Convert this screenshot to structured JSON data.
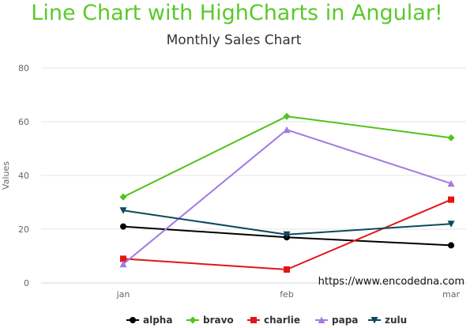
{
  "page": {
    "banner": "Line Chart with HighCharts in Angular!",
    "watermark_url": "https://www.encodedna.com"
  },
  "chart_data": {
    "type": "line",
    "title": "Monthly Sales Chart",
    "xlabel": "",
    "ylabel": "Values",
    "categories": [
      "jan",
      "feb",
      "mar"
    ],
    "ylim": [
      0,
      80
    ],
    "yticks": [
      0,
      20,
      40,
      60,
      80
    ],
    "grid": true,
    "legend_position": "bottom-center",
    "series": [
      {
        "name": "alpha",
        "values": [
          21,
          17,
          14
        ],
        "color": "#000000",
        "marker": "circle"
      },
      {
        "name": "bravo",
        "values": [
          32,
          62,
          54
        ],
        "color": "#52c41a",
        "marker": "diamond"
      },
      {
        "name": "charlie",
        "values": [
          9,
          5,
          31
        ],
        "color": "#e31515",
        "marker": "square"
      },
      {
        "name": "papa",
        "values": [
          7,
          57,
          37
        ],
        "color": "#a37be3",
        "marker": "triangle"
      },
      {
        "name": "zulu",
        "values": [
          27,
          18,
          22
        ],
        "color": "#0b4a5e",
        "marker": "triangle-down"
      }
    ]
  }
}
